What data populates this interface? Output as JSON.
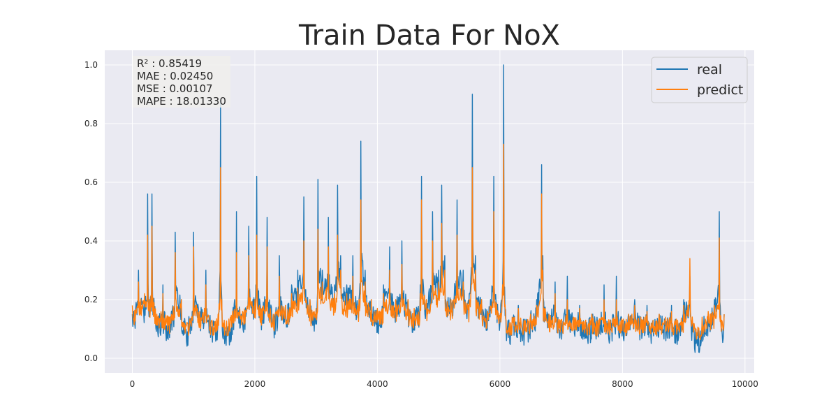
{
  "chart_data": {
    "type": "line",
    "title": "Train Data  For NoX",
    "xlabel": "",
    "ylabel": "",
    "xlim": [
      -450,
      10150
    ],
    "ylim": [
      -0.05,
      1.05
    ],
    "xticks": [
      0,
      2000,
      4000,
      6000,
      8000,
      10000
    ],
    "xtick_labels": [
      "0",
      "2000",
      "4000",
      "6000",
      "8000",
      "10000"
    ],
    "yticks": [
      0.0,
      0.2,
      0.4,
      0.6,
      0.8,
      1.0
    ],
    "ytick_labels": [
      "0.0",
      "0.2",
      "0.4",
      "0.6",
      "0.8",
      "1.0"
    ],
    "grid": true,
    "legend_position": "top-right",
    "metrics": [
      "R² : 0.85419",
      "MAE : 0.02450",
      "MSE : 0.00107",
      "MAPE : 18.01330"
    ],
    "x_range": [
      0,
      9660
    ],
    "series": [
      {
        "name": "real",
        "color": "#1f77b4",
        "x": [
          0,
          100,
          200,
          250,
          280,
          320,
          400,
          500,
          600,
          700,
          800,
          900,
          1000,
          1100,
          1200,
          1300,
          1400,
          1440,
          1460,
          1500,
          1600,
          1700,
          1800,
          1900,
          2000,
          2030,
          2100,
          2200,
          2300,
          2400,
          2500,
          2600,
          2700,
          2800,
          2900,
          3000,
          3030,
          3100,
          3200,
          3300,
          3350,
          3400,
          3500,
          3600,
          3700,
          3730,
          3800,
          3900,
          4000,
          4100,
          4200,
          4300,
          4400,
          4500,
          4600,
          4700,
          4720,
          4800,
          4900,
          5000,
          5050,
          5100,
          5200,
          5300,
          5400,
          5500,
          5550,
          5600,
          5700,
          5800,
          5900,
          6000,
          6060,
          6100,
          6200,
          6300,
          6400,
          6500,
          6600,
          6680,
          6700,
          6800,
          6900,
          7000,
          7100,
          7200,
          7300,
          7400,
          7500,
          7600,
          7700,
          7800,
          7900,
          8000,
          8100,
          8200,
          8300,
          8400,
          8500,
          8600,
          8700,
          8800,
          8900,
          9000,
          9100,
          9200,
          9300,
          9400,
          9500,
          9580,
          9620,
          9660
        ],
        "y": [
          0.15,
          0.3,
          0.2,
          0.56,
          0.18,
          0.56,
          0.12,
          0.25,
          0.1,
          0.43,
          0.2,
          0.09,
          0.43,
          0.15,
          0.3,
          0.1,
          0.12,
          0.88,
          0.2,
          0.1,
          0.1,
          0.5,
          0.12,
          0.45,
          0.2,
          0.62,
          0.15,
          0.48,
          0.12,
          0.35,
          0.18,
          0.25,
          0.3,
          0.55,
          0.2,
          0.15,
          0.61,
          0.3,
          0.48,
          0.25,
          0.59,
          0.35,
          0.25,
          0.35,
          0.2,
          0.74,
          0.3,
          0.2,
          0.15,
          0.25,
          0.38,
          0.2,
          0.4,
          0.2,
          0.15,
          0.25,
          0.62,
          0.2,
          0.5,
          0.3,
          0.59,
          0.35,
          0.2,
          0.54,
          0.3,
          0.22,
          0.9,
          0.35,
          0.2,
          0.15,
          0.62,
          0.12,
          1.0,
          0.1,
          0.12,
          0.18,
          0.1,
          0.15,
          0.2,
          0.66,
          0.35,
          0.15,
          0.26,
          0.12,
          0.28,
          0.12,
          0.18,
          0.1,
          0.15,
          0.12,
          0.25,
          0.1,
          0.28,
          0.1,
          0.15,
          0.2,
          0.12,
          0.18,
          0.1,
          0.15,
          0.12,
          0.18,
          0.1,
          0.2,
          0.28,
          0.05,
          0.12,
          0.15,
          0.2,
          0.5,
          0.1,
          0.15
        ]
      },
      {
        "name": "predict",
        "color": "#ff7f0e",
        "x": [
          0,
          100,
          200,
          250,
          280,
          320,
          400,
          500,
          600,
          700,
          800,
          900,
          1000,
          1100,
          1200,
          1300,
          1400,
          1440,
          1460,
          1500,
          1600,
          1700,
          1800,
          1900,
          2000,
          2030,
          2100,
          2200,
          2300,
          2400,
          2500,
          2600,
          2700,
          2800,
          2900,
          3000,
          3030,
          3100,
          3200,
          3300,
          3350,
          3400,
          3500,
          3600,
          3700,
          3730,
          3800,
          3900,
          4000,
          4100,
          4200,
          4300,
          4400,
          4500,
          4600,
          4700,
          4720,
          4800,
          4900,
          5000,
          5050,
          5100,
          5200,
          5300,
          5400,
          5500,
          5550,
          5600,
          5700,
          5800,
          5900,
          6000,
          6060,
          6100,
          6200,
          6300,
          6400,
          6500,
          6600,
          6680,
          6700,
          6800,
          6900,
          7000,
          7100,
          7200,
          7300,
          7400,
          7500,
          7600,
          7700,
          7800,
          7900,
          8000,
          8100,
          8200,
          8300,
          8400,
          8500,
          8600,
          8700,
          8800,
          8900,
          9000,
          9100,
          9200,
          9300,
          9400,
          9500,
          9580,
          9620,
          9660
        ],
        "y": [
          0.18,
          0.26,
          0.22,
          0.42,
          0.2,
          0.45,
          0.15,
          0.22,
          0.14,
          0.36,
          0.2,
          0.12,
          0.38,
          0.16,
          0.25,
          0.13,
          0.15,
          0.65,
          0.2,
          0.13,
          0.14,
          0.36,
          0.16,
          0.35,
          0.2,
          0.42,
          0.17,
          0.38,
          0.15,
          0.28,
          0.18,
          0.22,
          0.24,
          0.4,
          0.2,
          0.17,
          0.44,
          0.26,
          0.38,
          0.22,
          0.42,
          0.3,
          0.22,
          0.28,
          0.2,
          0.54,
          0.26,
          0.2,
          0.17,
          0.22,
          0.3,
          0.2,
          0.32,
          0.2,
          0.17,
          0.22,
          0.54,
          0.2,
          0.4,
          0.26,
          0.46,
          0.3,
          0.2,
          0.42,
          0.26,
          0.2,
          0.65,
          0.3,
          0.2,
          0.16,
          0.5,
          0.14,
          0.73,
          0.13,
          0.14,
          0.17,
          0.13,
          0.15,
          0.18,
          0.56,
          0.3,
          0.15,
          0.22,
          0.13,
          0.2,
          0.14,
          0.17,
          0.13,
          0.15,
          0.13,
          0.2,
          0.13,
          0.2,
          0.13,
          0.15,
          0.18,
          0.14,
          0.16,
          0.13,
          0.15,
          0.14,
          0.16,
          0.13,
          0.18,
          0.34,
          0.1,
          0.14,
          0.16,
          0.18,
          0.41,
          0.13,
          0.15
        ]
      }
    ]
  }
}
